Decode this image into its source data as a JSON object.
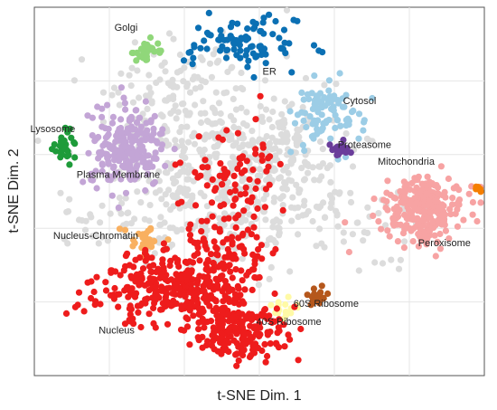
{
  "chart_data": {
    "type": "scatter",
    "title": "",
    "xlabel": "t-SNE Dim. 1",
    "ylabel": "t-SNE Dim. 2",
    "xlim": [
      0,
      100
    ],
    "ylim": [
      0,
      100
    ],
    "tick_labels_shown": false,
    "grid": true,
    "background_color": "#ffffff",
    "grid_color": "#e6e6e6",
    "unassigned_color": "#dcdcdc",
    "series": [
      {
        "name": "Golgi",
        "color": "#90d77a",
        "x": 25.0,
        "y": 88.1,
        "count": 30,
        "spread": [
          2.2,
          1.3
        ]
      },
      {
        "name": "ER",
        "color": "#0b70b4",
        "x": 46.5,
        "y": 90.1,
        "count": 90,
        "spread": [
          6.0,
          3.4
        ]
      },
      {
        "name": "Cytosol",
        "color": "#9ccde6",
        "x": 65.3,
        "y": 71.2,
        "count": 90,
        "spread": [
          3.8,
          4.6
        ]
      },
      {
        "name": "Lysosome",
        "color": "#1e9b3a",
        "x": 6.6,
        "y": 62.1,
        "count": 28,
        "spread": [
          1.2,
          2.3
        ]
      },
      {
        "name": "Plasma Membrane",
        "color": "#c3a5d6",
        "x": 20.7,
        "y": 61.6,
        "count": 240,
        "spread": [
          4.0,
          5.3
        ]
      },
      {
        "name": "Proteasome",
        "color": "#6a3d9a",
        "x": 67.6,
        "y": 61.0,
        "count": 18,
        "spread": [
          1.6,
          0.9
        ]
      },
      {
        "name": "Mitochondria",
        "color": "#f7a3a3",
        "x": 86.8,
        "y": 45.3,
        "count": 260,
        "spread": [
          4.3,
          4.2
        ]
      },
      {
        "name": "Peroxisome",
        "color": "#f57e00",
        "x": 98.5,
        "y": 50.5,
        "count": 6,
        "spread": [
          0.6,
          0.6
        ]
      },
      {
        "name": "Nucleus-Chromatin",
        "color": "#f9b060",
        "x": 24.4,
        "y": 36.2,
        "count": 30,
        "spread": [
          2.0,
          2.3
        ]
      },
      {
        "name": "60S Ribosome",
        "color": "#b5571c",
        "x": 62.6,
        "y": 21.6,
        "count": 22,
        "spread": [
          1.1,
          1.5
        ]
      },
      {
        "name": "40S Ribosome",
        "color": "#fffaa6",
        "x": 55.2,
        "y": 18.3,
        "count": 18,
        "spread": [
          2.0,
          1.3
        ]
      },
      {
        "name": "Nucleus",
        "color": "#ee1c1c",
        "x": 40.0,
        "y": 20.0,
        "count": 700,
        "spread": [
          9.0,
          7.5
        ]
      }
    ],
    "annotations": [
      {
        "text": "Golgi",
        "x": 17.8,
        "y": 93.6
      },
      {
        "text": "ER",
        "x": 50.7,
        "y": 81.7
      },
      {
        "text": "Cytosol",
        "x": 68.6,
        "y": 73.7
      },
      {
        "text": "Lysosome",
        "x": -0.9,
        "y": 66.1
      },
      {
        "text": "Proteasome",
        "x": 67.4,
        "y": 61.8
      },
      {
        "text": "Mitochondria",
        "x": 76.3,
        "y": 57.3
      },
      {
        "text": "Plasma Membrane",
        "x": 9.4,
        "y": 53.7
      },
      {
        "text": "Nucleus-Chromatin",
        "x": 4.2,
        "y": 37.1
      },
      {
        "text": "Peroxisome",
        "x": 85.3,
        "y": 35.1
      },
      {
        "text": "60S Ribosome",
        "x": 57.6,
        "y": 18.7
      },
      {
        "text": "40S Ribosome",
        "x": 49.3,
        "y": 13.7
      },
      {
        "text": "Nucleus",
        "x": 14.3,
        "y": 11.4
      }
    ],
    "background_cloud": {
      "count": 700
    }
  }
}
